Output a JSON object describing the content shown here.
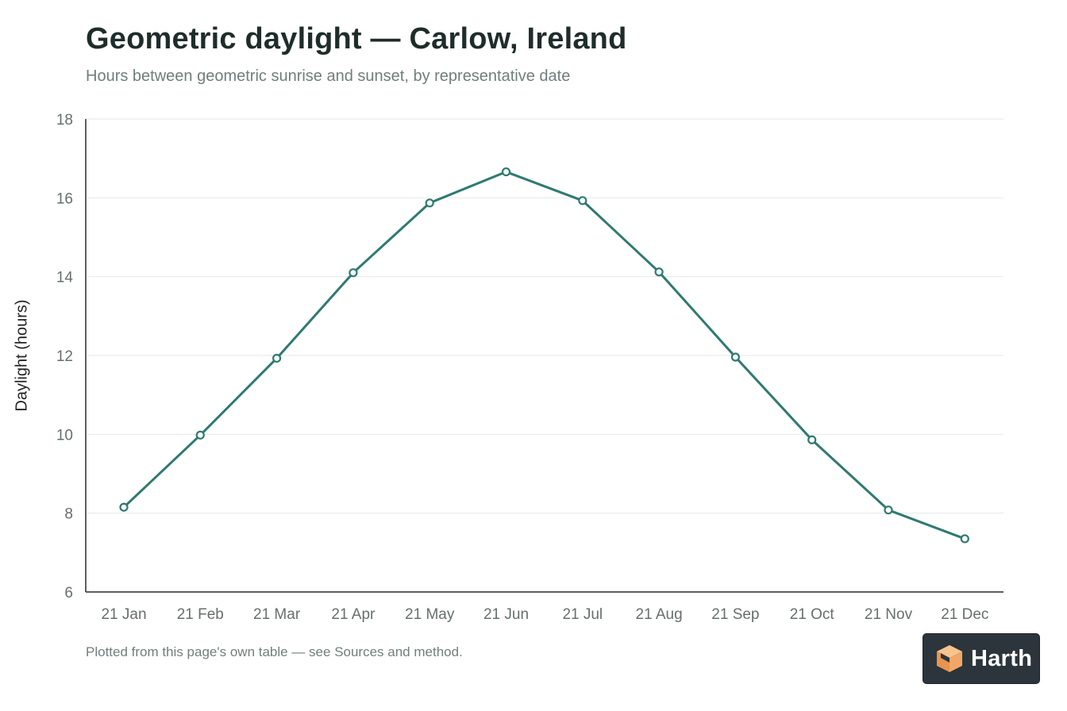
{
  "chart_data": {
    "type": "line",
    "title": "Geometric daylight — Carlow, Ireland",
    "subtitle": "Hours between geometric sunrise and sunset, by representative date",
    "xlabel": "",
    "ylabel": "Daylight (hours)",
    "ylim": [
      6,
      18
    ],
    "yticks": [
      6,
      8,
      10,
      12,
      14,
      16,
      18
    ],
    "grid": true,
    "categories": [
      "21 Jan",
      "21 Feb",
      "21 Mar",
      "21 Apr",
      "21 May",
      "21 Jun",
      "21 Jul",
      "21 Aug",
      "21 Sep",
      "21 Oct",
      "21 Nov",
      "21 Dec"
    ],
    "series": [
      {
        "values": [
          8.15,
          9.98,
          11.93,
          14.1,
          15.87,
          16.66,
          15.93,
          14.12,
          11.96,
          9.86,
          8.08,
          7.35
        ]
      }
    ],
    "line_color": "#2e7a70"
  },
  "footnote": "Plotted from this page's own table — see Sources and method.",
  "badge": {
    "brand": "Harth",
    "icon": "cube-logo-icon"
  }
}
